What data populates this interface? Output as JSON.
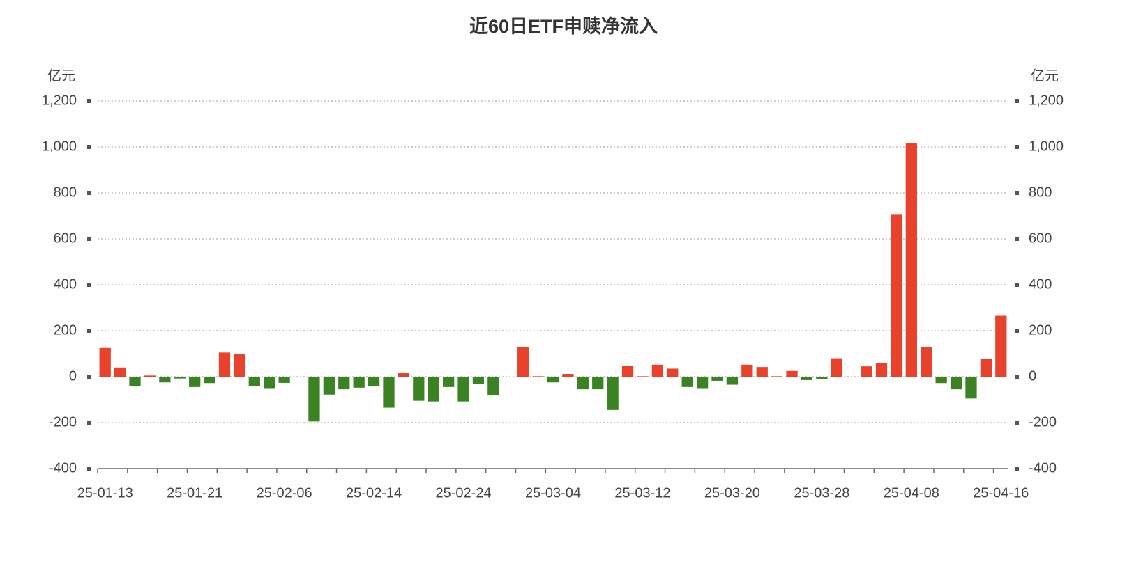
{
  "chart_data": {
    "type": "bar",
    "title": "近60日ETF申赎净流入",
    "y_label": "亿元",
    "y2_label": "亿元",
    "categories": [
      "25-01-13",
      null,
      null,
      null,
      null,
      null,
      "25-01-21",
      null,
      null,
      null,
      null,
      null,
      "25-02-06",
      null,
      null,
      null,
      null,
      null,
      "25-02-14",
      null,
      null,
      null,
      null,
      null,
      "25-02-24",
      null,
      null,
      null,
      null,
      null,
      "25-03-04",
      null,
      null,
      null,
      null,
      null,
      "25-03-12",
      null,
      null,
      null,
      null,
      null,
      "25-03-20",
      null,
      null,
      null,
      null,
      null,
      "25-03-28",
      null,
      null,
      null,
      null,
      null,
      "25-04-08",
      null,
      null,
      null,
      null,
      null,
      "25-04-16"
    ],
    "values": [
      125,
      40,
      -40,
      5,
      -25,
      -8,
      -45,
      -28,
      105,
      100,
      -42,
      -50,
      -27,
      0,
      -195,
      -78,
      -55,
      -48,
      -40,
      -135,
      15,
      -105,
      -108,
      -45,
      -108,
      -33,
      -82,
      0,
      128,
      2,
      -25,
      12,
      -55,
      -55,
      -145,
      48,
      2,
      52,
      35,
      -45,
      -50,
      -18,
      -35,
      52,
      42,
      2,
      25,
      -15,
      -10,
      80,
      0,
      45,
      60,
      705,
      1015,
      128,
      -28,
      -55,
      -95,
      78,
      265
    ],
    "positive_color": "#e8412c",
    "negative_color": "#3a8222",
    "ylim": [
      -400,
      1200
    ],
    "yticks": [
      -400,
      -200,
      0,
      200,
      400,
      600,
      800,
      {
        "value": 1000,
        "label": "1,000"
      },
      {
        "value": 1200,
        "label": "1,200"
      }
    ],
    "y2lim": [
      -400,
      1200
    ],
    "y2ticks": [
      -400,
      -200,
      0,
      200,
      400,
      600,
      800,
      {
        "value": 1000,
        "label": "1,000"
      },
      {
        "value": 1200,
        "label": "1,200"
      }
    ],
    "grid": true
  }
}
